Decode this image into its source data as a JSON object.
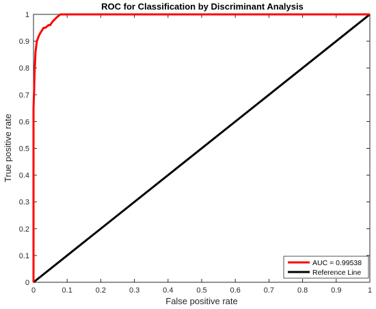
{
  "chart_data": {
    "type": "line",
    "title": "ROC for Classification by Discriminant Analysis",
    "xlabel": "False positive rate",
    "ylabel": "True positive rate",
    "xlim": [
      0,
      1
    ],
    "ylim": [
      0,
      1
    ],
    "xticks": [
      "0",
      "0.1",
      "0.2",
      "0.3",
      "0.4",
      "0.5",
      "0.6",
      "0.7",
      "0.8",
      "0.9",
      "1"
    ],
    "yticks": [
      "0",
      "0.1",
      "0.2",
      "0.3",
      "0.4",
      "0.5",
      "0.6",
      "0.7",
      "0.8",
      "0.9",
      "1"
    ],
    "grid": false,
    "legend_position": "bottom-right",
    "series": [
      {
        "name": "AUC = 0.99538",
        "color": "#ff0000",
        "x": [
          0,
          0,
          0.002,
          0.003,
          0.005,
          0.006,
          0.008,
          0.01,
          0.013,
          0.016,
          0.02,
          0.025,
          0.03,
          0.035,
          0.04,
          0.045,
          0.05,
          0.052,
          0.055,
          0.058,
          0.062,
          0.066,
          0.07,
          0.075,
          0.08,
          0.085,
          0.09,
          0.1,
          0.15,
          0.3,
          0.5,
          0.7,
          0.9,
          1.0
        ],
        "y": [
          0,
          0.65,
          0.72,
          0.78,
          0.83,
          0.86,
          0.88,
          0.9,
          0.91,
          0.92,
          0.93,
          0.94,
          0.95,
          0.95,
          0.955,
          0.96,
          0.96,
          0.965,
          0.97,
          0.975,
          0.98,
          0.985,
          0.99,
          0.995,
          1.0,
          1.0,
          1.0,
          1.0,
          1.0,
          1.0,
          1.0,
          1.0,
          1.0,
          1.0
        ]
      },
      {
        "name": "Reference Line",
        "color": "#000000",
        "x": [
          0,
          1
        ],
        "y": [
          0,
          1
        ]
      }
    ]
  }
}
